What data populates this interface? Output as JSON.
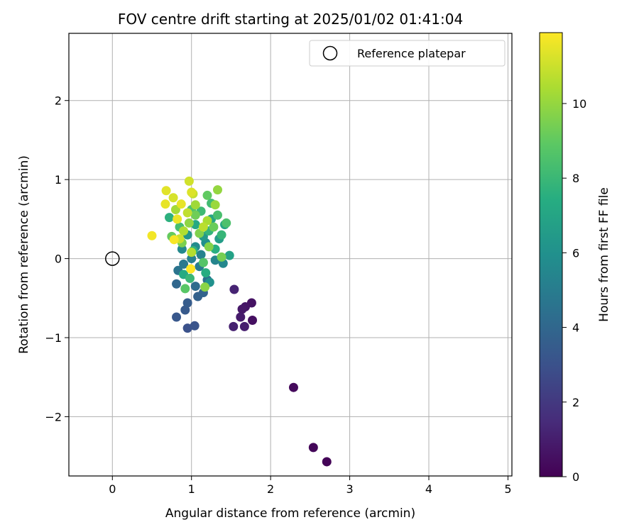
{
  "chart_data": {
    "type": "scatter",
    "title": "FOV centre drift starting at 2025/01/02 01:41:04",
    "xlabel": "Angular distance from reference (arcmin)",
    "ylabel": "Rotation from reference (arcmin)",
    "xlim": [
      -0.55,
      5.05
    ],
    "ylim": [
      -2.75,
      2.85
    ],
    "xticks": [
      0,
      1,
      2,
      3,
      4,
      5
    ],
    "xtick_labels": [
      "0",
      "1",
      "2",
      "3",
      "4",
      "5"
    ],
    "yticks": [
      -2,
      -1,
      0,
      1,
      2
    ],
    "ytick_labels": [
      "−2",
      "−1",
      "0",
      "1",
      "2"
    ],
    "grid": true,
    "legend": {
      "placement": "top-right",
      "entries": [
        "Reference platepar"
      ]
    },
    "reference_point": {
      "x": 0,
      "y": 0
    },
    "colorbar": {
      "label": "Hours from first FF file",
      "colormap": "viridis",
      "range": [
        0,
        11.9
      ],
      "ticks": [
        0,
        2,
        4,
        6,
        8,
        10
      ],
      "tick_labels": [
        "0",
        "2",
        "4",
        "6",
        "8",
        "10"
      ]
    },
    "points": [
      {
        "x": 2.71,
        "y": -2.57,
        "c": 0.1
      },
      {
        "x": 2.54,
        "y": -2.39,
        "c": 0.2
      },
      {
        "x": 2.29,
        "y": -1.63,
        "c": 0.3
      },
      {
        "x": 1.77,
        "y": -0.78,
        "c": 0.5
      },
      {
        "x": 1.76,
        "y": -0.56,
        "c": 0.6
      },
      {
        "x": 1.68,
        "y": -0.61,
        "c": 0.7
      },
      {
        "x": 1.64,
        "y": -0.64,
        "c": 0.8
      },
      {
        "x": 1.62,
        "y": -0.74,
        "c": 0.9
      },
      {
        "x": 1.67,
        "y": -0.86,
        "c": 1.0
      },
      {
        "x": 1.53,
        "y": -0.86,
        "c": 1.1
      },
      {
        "x": 1.54,
        "y": -0.39,
        "c": 1.2
      },
      {
        "x": 0.95,
        "y": -0.88,
        "c": 3.0
      },
      {
        "x": 1.04,
        "y": -0.85,
        "c": 3.1
      },
      {
        "x": 0.81,
        "y": -0.74,
        "c": 3.3
      },
      {
        "x": 0.92,
        "y": -0.65,
        "c": 3.4
      },
      {
        "x": 0.95,
        "y": -0.56,
        "c": 3.5
      },
      {
        "x": 1.08,
        "y": -0.48,
        "c": 3.7
      },
      {
        "x": 1.15,
        "y": -0.43,
        "c": 3.8
      },
      {
        "x": 0.81,
        "y": -0.32,
        "c": 4.0
      },
      {
        "x": 1.05,
        "y": -0.35,
        "c": 4.2
      },
      {
        "x": 1.2,
        "y": -0.27,
        "c": 4.4
      },
      {
        "x": 0.83,
        "y": -0.15,
        "c": 4.6
      },
      {
        "x": 0.9,
        "y": -0.07,
        "c": 4.8
      },
      {
        "x": 1.1,
        "y": -0.1,
        "c": 5.0
      },
      {
        "x": 1.0,
        "y": 0.0,
        "c": 5.2
      },
      {
        "x": 1.12,
        "y": 0.05,
        "c": 5.3
      },
      {
        "x": 1.3,
        "y": -0.02,
        "c": 5.4
      },
      {
        "x": 1.4,
        "y": -0.06,
        "c": 5.5
      },
      {
        "x": 0.88,
        "y": 0.12,
        "c": 5.6
      },
      {
        "x": 1.05,
        "y": 0.15,
        "c": 5.7
      },
      {
        "x": 1.18,
        "y": 0.2,
        "c": 5.9
      },
      {
        "x": 1.23,
        "y": -0.3,
        "c": 6.0
      },
      {
        "x": 0.95,
        "y": 0.3,
        "c": 6.2
      },
      {
        "x": 1.15,
        "y": 0.28,
        "c": 6.4
      },
      {
        "x": 1.35,
        "y": 0.25,
        "c": 6.6
      },
      {
        "x": 1.48,
        "y": 0.04,
        "c": 6.8
      },
      {
        "x": 1.25,
        "y": 0.5,
        "c": 7.0
      },
      {
        "x": 1.42,
        "y": 0.43,
        "c": 7.1
      },
      {
        "x": 1.05,
        "y": 0.43,
        "c": 7.2
      },
      {
        "x": 0.9,
        "y": -0.2,
        "c": 7.3
      },
      {
        "x": 1.18,
        "y": -0.18,
        "c": 7.4
      },
      {
        "x": 1.3,
        "y": 0.12,
        "c": 7.5
      },
      {
        "x": 0.72,
        "y": 0.52,
        "c": 7.6
      },
      {
        "x": 1.02,
        "y": 0.1,
        "c": 7.7
      },
      {
        "x": 1.22,
        "y": 0.35,
        "c": 7.8
      },
      {
        "x": 1.38,
        "y": 0.3,
        "c": 7.9
      },
      {
        "x": 0.98,
        "y": -0.25,
        "c": 8.0
      },
      {
        "x": 1.12,
        "y": 0.6,
        "c": 8.1
      },
      {
        "x": 1.25,
        "y": 0.7,
        "c": 8.2
      },
      {
        "x": 0.85,
        "y": 0.4,
        "c": 8.3
      },
      {
        "x": 1.33,
        "y": 0.55,
        "c": 8.4
      },
      {
        "x": 1.44,
        "y": 0.45,
        "c": 8.5
      },
      {
        "x": 1.0,
        "y": 0.62,
        "c": 8.6
      },
      {
        "x": 1.15,
        "y": -0.05,
        "c": 8.7
      },
      {
        "x": 0.92,
        "y": -0.38,
        "c": 8.8
      },
      {
        "x": 1.2,
        "y": 0.8,
        "c": 9.0
      },
      {
        "x": 0.75,
        "y": 0.28,
        "c": 9.1
      },
      {
        "x": 1.28,
        "y": 0.4,
        "c": 9.2
      },
      {
        "x": 1.05,
        "y": 0.55,
        "c": 9.3
      },
      {
        "x": 1.38,
        "y": 0.02,
        "c": 9.4
      },
      {
        "x": 0.88,
        "y": 0.2,
        "c": 9.5
      },
      {
        "x": 1.1,
        "y": 0.32,
        "c": 9.6
      },
      {
        "x": 1.22,
        "y": 0.15,
        "c": 9.7
      },
      {
        "x": 1.17,
        "y": -0.36,
        "c": 9.8
      },
      {
        "x": 0.97,
        "y": 0.45,
        "c": 9.9
      },
      {
        "x": 1.33,
        "y": 0.87,
        "c": 10.0
      },
      {
        "x": 1.3,
        "y": 0.68,
        "c": 10.1
      },
      {
        "x": 1.05,
        "y": 0.68,
        "c": 10.2
      },
      {
        "x": 0.8,
        "y": 0.62,
        "c": 10.3
      },
      {
        "x": 1.2,
        "y": 0.48,
        "c": 10.4
      },
      {
        "x": 0.9,
        "y": 0.35,
        "c": 10.5
      },
      {
        "x": 1.0,
        "y": 0.08,
        "c": 10.6
      },
      {
        "x": 1.15,
        "y": 0.4,
        "c": 10.7
      },
      {
        "x": 0.95,
        "y": 0.58,
        "c": 10.8
      },
      {
        "x": 1.02,
        "y": 0.82,
        "c": 10.9
      },
      {
        "x": 0.85,
        "y": 0.25,
        "c": 11.0
      },
      {
        "x": 0.97,
        "y": 0.98,
        "c": 11.1
      },
      {
        "x": 0.77,
        "y": 0.77,
        "c": 11.2
      },
      {
        "x": 1.0,
        "y": 0.84,
        "c": 11.3
      },
      {
        "x": 0.68,
        "y": 0.86,
        "c": 11.4
      },
      {
        "x": 0.87,
        "y": 0.69,
        "c": 11.5
      },
      {
        "x": 0.67,
        "y": 0.69,
        "c": 11.5
      },
      {
        "x": 0.82,
        "y": 0.5,
        "c": 11.6
      },
      {
        "x": 0.5,
        "y": 0.29,
        "c": 11.7
      },
      {
        "x": 0.78,
        "y": 0.24,
        "c": 11.8
      },
      {
        "x": 0.99,
        "y": -0.13,
        "c": 11.9
      }
    ]
  }
}
